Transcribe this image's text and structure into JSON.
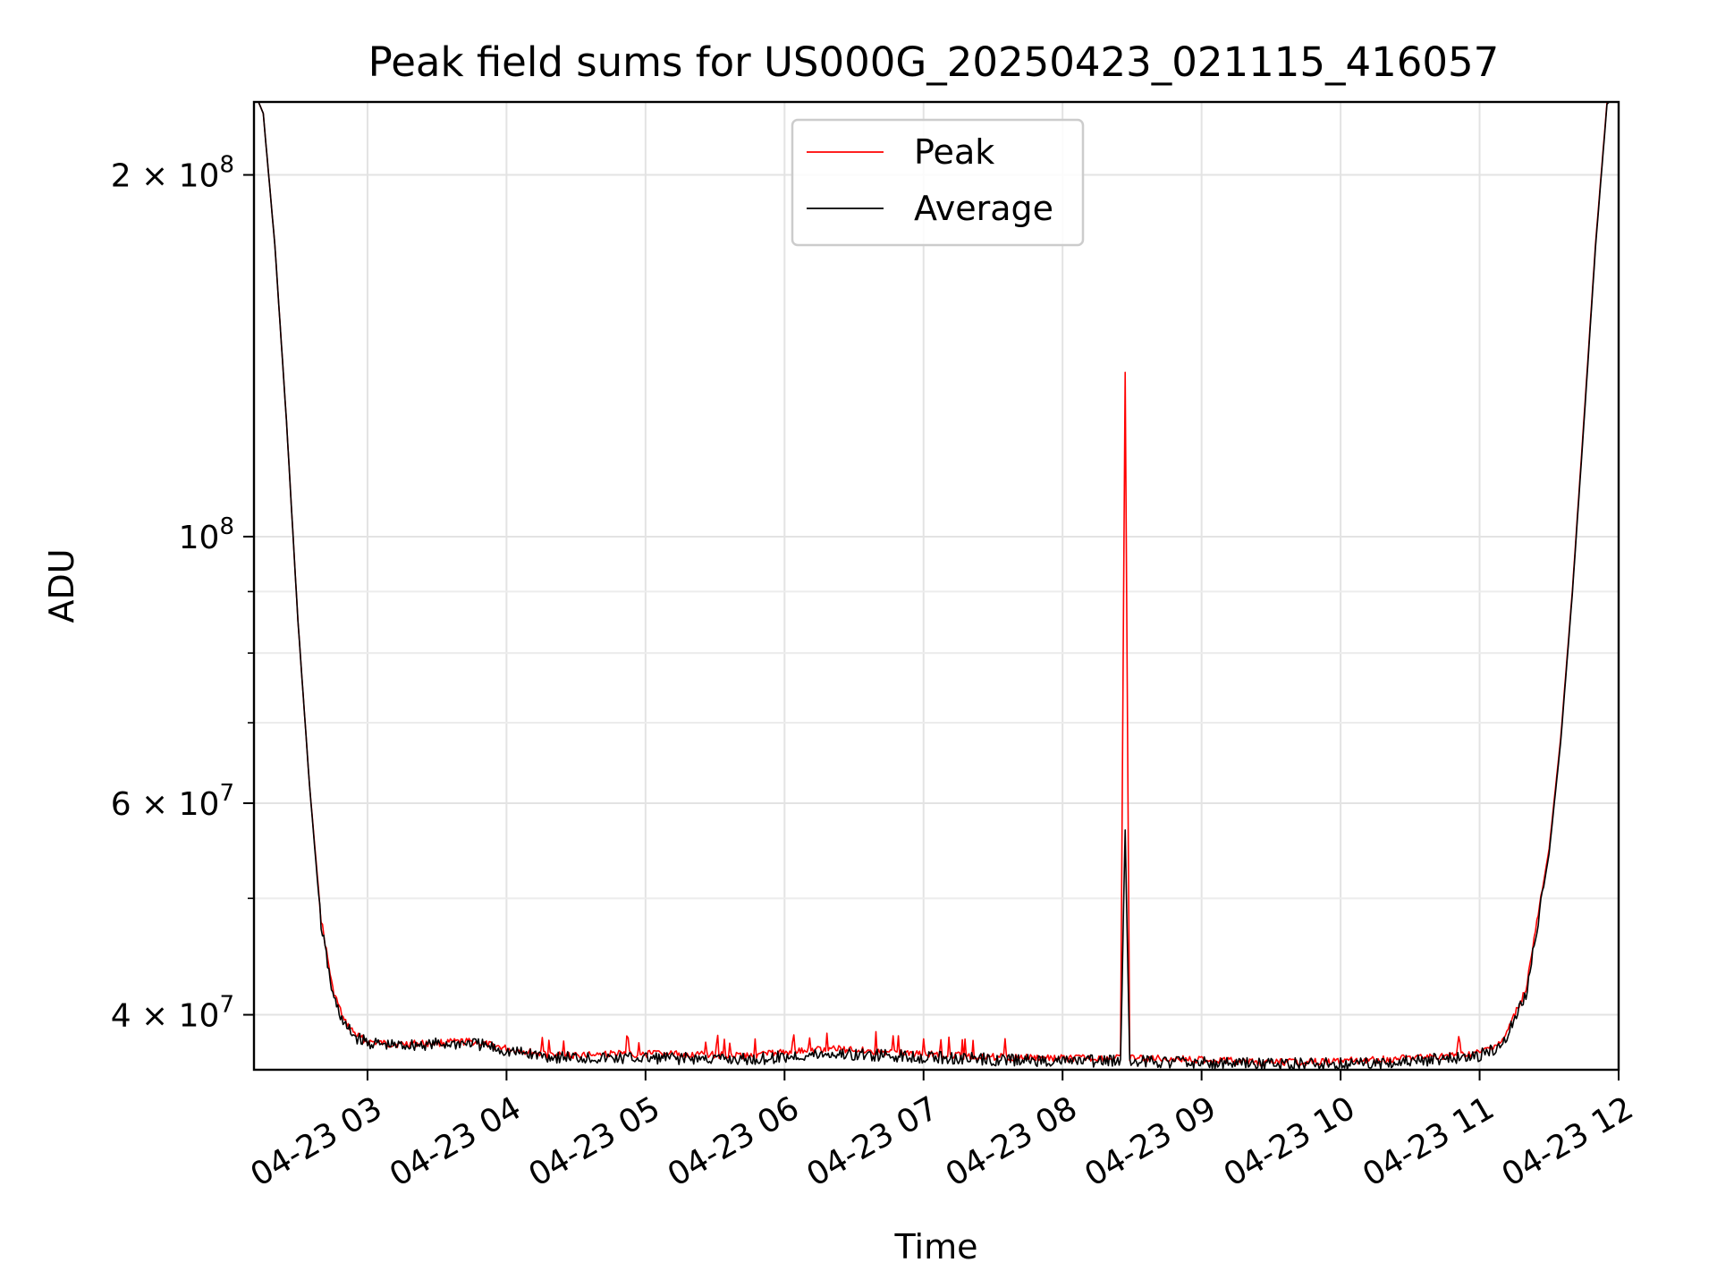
{
  "chart_data": {
    "type": "line",
    "title": "Peak field sums for US000G_20250423_021115_416057",
    "xlabel": "Time",
    "ylabel": "ADU",
    "xscale": "time",
    "yscale": "log",
    "grid": true,
    "legend_position": "top-center",
    "xlim": [
      "2025-04-23 02:11",
      "2025-04-23 12:00"
    ],
    "ylim": [
      36000000,
      230000000
    ],
    "x_ticks": [
      "04-23 03",
      "04-23 04",
      "04-23 05",
      "04-23 06",
      "04-23 07",
      "04-23 08",
      "04-23 09",
      "04-23 10",
      "04-23 11",
      "04-23 12"
    ],
    "y_ticks": [
      {
        "value": 40000000,
        "mantissa": "4",
        "exponent": "7"
      },
      {
        "value": 60000000,
        "mantissa": "6",
        "exponent": "7"
      },
      {
        "value": 100000000,
        "mantissa": "",
        "exponent": "8"
      },
      {
        "value": 200000000,
        "mantissa": "2",
        "exponent": "8"
      }
    ],
    "y_minor_ticks": [
      50000000,
      70000000,
      80000000,
      90000000
    ],
    "series": [
      {
        "name": "Peak",
        "color": "#ff0000",
        "x": [
          "2025-04-23 02:11",
          "2025-04-23 02:15",
          "2025-04-23 02:20",
          "2025-04-23 02:25",
          "2025-04-23 02:30",
          "2025-04-23 02:35",
          "2025-04-23 02:40",
          "2025-04-23 02:45",
          "2025-04-23 02:50",
          "2025-04-23 02:55",
          "2025-04-23 03:00",
          "2025-04-23 03:10",
          "2025-04-23 03:30",
          "2025-04-23 03:45",
          "2025-04-23 04:00",
          "2025-04-23 04:20",
          "2025-04-23 04:45",
          "2025-04-23 05:15",
          "2025-04-23 05:45",
          "2025-04-23 06:00",
          "2025-04-23 06:20",
          "2025-04-23 06:40",
          "2025-04-23 07:00",
          "2025-04-23 07:30",
          "2025-04-23 08:00",
          "2025-04-23 08:25",
          "2025-04-23 08:27",
          "2025-04-23 08:29",
          "2025-04-23 08:40",
          "2025-04-23 09:00",
          "2025-04-23 09:30",
          "2025-04-23 10:00",
          "2025-04-23 10:30",
          "2025-04-23 10:50",
          "2025-04-23 10:51",
          "2025-04-23 10:52",
          "2025-04-23 11:00",
          "2025-04-23 11:10",
          "2025-04-23 11:20",
          "2025-04-23 11:30",
          "2025-04-23 11:35",
          "2025-04-23 11:40",
          "2025-04-23 11:45",
          "2025-04-23 11:50",
          "2025-04-23 11:55",
          "2025-04-23 12:00"
        ],
        "y": [
          235000000,
          225000000,
          175000000,
          125000000,
          85000000,
          62000000,
          48000000,
          42000000,
          39500000,
          38500000,
          38000000,
          37800000,
          37900000,
          38000000,
          37500000,
          37000000,
          37100000,
          37100000,
          37000000,
          37200000,
          37500000,
          37300000,
          37100000,
          36900000,
          36800000,
          36800000,
          137000000,
          36800000,
          36800000,
          36700000,
          36500000,
          36600000,
          36800000,
          37000000,
          38500000,
          37000000,
          37200000,
          38000000,
          42000000,
          55000000,
          68000000,
          90000000,
          125000000,
          175000000,
          230000000,
          235000000
        ]
      },
      {
        "name": "Average",
        "color": "#000000",
        "x": [
          "2025-04-23 02:11",
          "2025-04-23 02:15",
          "2025-04-23 02:20",
          "2025-04-23 02:25",
          "2025-04-23 02:30",
          "2025-04-23 02:35",
          "2025-04-23 02:40",
          "2025-04-23 02:45",
          "2025-04-23 02:50",
          "2025-04-23 02:55",
          "2025-04-23 03:00",
          "2025-04-23 03:10",
          "2025-04-23 03:30",
          "2025-04-23 03:45",
          "2025-04-23 04:00",
          "2025-04-23 04:20",
          "2025-04-23 04:45",
          "2025-04-23 05:15",
          "2025-04-23 05:45",
          "2025-04-23 06:00",
          "2025-04-23 06:20",
          "2025-04-23 06:40",
          "2025-04-23 07:00",
          "2025-04-23 07:30",
          "2025-04-23 08:00",
          "2025-04-23 08:25",
          "2025-04-23 08:27",
          "2025-04-23 08:29",
          "2025-04-23 08:40",
          "2025-04-23 09:00",
          "2025-04-23 09:30",
          "2025-04-23 10:00",
          "2025-04-23 10:30",
          "2025-04-23 10:50",
          "2025-04-23 11:00",
          "2025-04-23 11:10",
          "2025-04-23 11:20",
          "2025-04-23 11:30",
          "2025-04-23 11:35",
          "2025-04-23 11:40",
          "2025-04-23 11:45",
          "2025-04-23 11:50",
          "2025-04-23 11:55",
          "2025-04-23 12:00"
        ],
        "y": [
          235000000,
          225000000,
          175000000,
          125000000,
          85000000,
          62000000,
          47500000,
          41500000,
          39200000,
          38300000,
          37900000,
          37700000,
          37800000,
          37900000,
          37300000,
          36900000,
          36800000,
          36800000,
          36700000,
          36900000,
          37100000,
          37000000,
          36900000,
          36700000,
          36600000,
          36600000,
          57000000,
          36600000,
          36600000,
          36500000,
          36400000,
          36400000,
          36600000,
          36800000,
          37000000,
          37800000,
          41500000,
          54500000,
          67500000,
          89500000,
          124000000,
          174000000,
          229000000,
          235000000
        ]
      }
    ]
  }
}
